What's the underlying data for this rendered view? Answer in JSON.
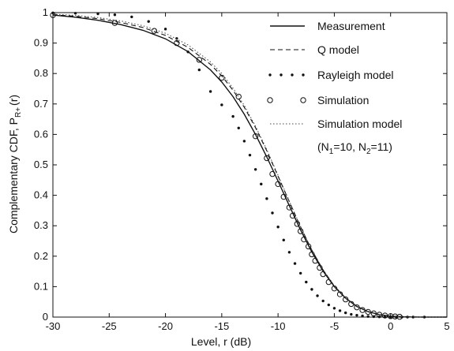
{
  "chart_data": {
    "type": "line",
    "xlabel": "Level, r (dB)",
    "ylabel": "Complementary CDF, P",
    "ylabel_sub": "R+",
    "ylabel_suffix": "(r)",
    "xlim": [
      -30,
      5
    ],
    "ylim": [
      0,
      1
    ],
    "xticks": [
      -30,
      -25,
      -20,
      -15,
      -10,
      -5,
      0,
      5
    ],
    "yticks": [
      0,
      0.1,
      0.2,
      0.3,
      0.4,
      0.5,
      0.6,
      0.7,
      0.8,
      0.9,
      1
    ],
    "grid": false,
    "legend_position": "top-right",
    "series": [
      {
        "name": "Measurement",
        "style": "solid",
        "x": [
          -30,
          -28,
          -26,
          -24,
          -22,
          -20,
          -18,
          -16,
          -15,
          -14,
          -13,
          -12,
          -11,
          -10,
          -9,
          -8,
          -7,
          -6,
          -5,
          -4,
          -3,
          -2,
          -1,
          0,
          1,
          2,
          3,
          5
        ],
        "y": [
          0.992,
          0.985,
          0.975,
          0.961,
          0.942,
          0.914,
          0.872,
          0.812,
          0.772,
          0.724,
          0.666,
          0.6,
          0.526,
          0.447,
          0.366,
          0.286,
          0.214,
          0.151,
          0.1,
          0.062,
          0.035,
          0.018,
          0.008,
          0.003,
          0.001,
          0.0003,
          0.0001,
          0
        ]
      },
      {
        "name": "Q model",
        "style": "dashed",
        "x": [
          -30,
          -28,
          -26,
          -24,
          -22,
          -20,
          -18,
          -16,
          -15,
          -14,
          -13,
          -12,
          -11,
          -10,
          -9,
          -8,
          -7,
          -6,
          -5,
          -4,
          -3,
          -2,
          -1,
          0,
          1,
          2,
          3,
          5
        ],
        "y": [
          0.993,
          0.988,
          0.98,
          0.968,
          0.951,
          0.925,
          0.886,
          0.83,
          0.792,
          0.745,
          0.689,
          0.622,
          0.546,
          0.463,
          0.379,
          0.296,
          0.22,
          0.155,
          0.102,
          0.063,
          0.035,
          0.018,
          0.008,
          0.003,
          0.001,
          0.0003,
          0.0001,
          0
        ]
      },
      {
        "name": "Rayleigh model",
        "style": "dots",
        "x": [
          -30,
          -28,
          -26,
          -24.5,
          -23,
          -21.5,
          -20,
          -19,
          -18,
          -17,
          -16,
          -15,
          -14,
          -13.5,
          -13,
          -12.5,
          -12,
          -11.5,
          -11,
          -10.5,
          -10,
          -9.5,
          -9,
          -8.5,
          -8,
          -7.5,
          -7,
          -6.5,
          -6,
          -5.5,
          -5,
          -4.5,
          -4,
          -3.5,
          -3,
          -2.5,
          -2,
          -1.5,
          -1,
          -0.5,
          0,
          0.5,
          1,
          1.5,
          2,
          3
        ],
        "y": [
          0.999,
          0.998,
          0.996,
          0.993,
          0.986,
          0.971,
          0.946,
          0.915,
          0.871,
          0.812,
          0.741,
          0.697,
          0.659,
          0.621,
          0.578,
          0.532,
          0.485,
          0.437,
          0.389,
          0.342,
          0.296,
          0.253,
          0.213,
          0.176,
          0.144,
          0.115,
          0.091,
          0.07,
          0.053,
          0.04,
          0.029,
          0.021,
          0.014,
          0.009,
          0.006,
          0.004,
          0.002,
          0.0014,
          0.0008,
          0.0004,
          0.0002,
          0.0001,
          0.0,
          0.0,
          0.0,
          0.0
        ]
      },
      {
        "name": "Simulation",
        "style": "circles",
        "x": [
          -30,
          -24.5,
          -21,
          -19,
          -17,
          -15,
          -13.5,
          -12,
          -11,
          -10.5,
          -10,
          -9.5,
          -9,
          -8.7,
          -8.3,
          -8,
          -7.7,
          -7.3,
          -7,
          -6.7,
          -6.3,
          -6,
          -5.5,
          -5,
          -4.5,
          -4,
          -3.5,
          -3,
          -2.5,
          -2,
          -1.5,
          -1,
          -0.5,
          0,
          0.4,
          0.8
        ],
        "y": [
          0.992,
          0.966,
          0.94,
          0.9,
          0.845,
          0.786,
          0.724,
          0.594,
          0.522,
          0.47,
          0.437,
          0.395,
          0.36,
          0.333,
          0.306,
          0.282,
          0.255,
          0.232,
          0.206,
          0.185,
          0.162,
          0.141,
          0.115,
          0.094,
          0.075,
          0.058,
          0.043,
          0.032,
          0.023,
          0.017,
          0.012,
          0.008,
          0.005,
          0.003,
          0.002,
          0.001
        ]
      },
      {
        "name": "Simulation model",
        "style": "dotted",
        "x": [
          -30,
          -28,
          -26,
          -24,
          -22,
          -20,
          -18,
          -16,
          -15,
          -14,
          -13,
          -12,
          -11,
          -10,
          -9,
          -8,
          -7,
          -6,
          -5,
          -4,
          -3,
          -2,
          -1,
          0,
          1,
          2,
          3,
          5
        ],
        "y": [
          0.995,
          0.991,
          0.984,
          0.973,
          0.957,
          0.932,
          0.894,
          0.838,
          0.8,
          0.752,
          0.695,
          0.627,
          0.55,
          0.466,
          0.381,
          0.297,
          0.221,
          0.155,
          0.101,
          0.062,
          0.035,
          0.018,
          0.008,
          0.003,
          0.001,
          0.0003,
          0.0001,
          0
        ]
      }
    ],
    "legend": [
      "Measurement",
      "Q model",
      "Rayleigh model",
      "Simulation",
      "Simulation model"
    ],
    "legend_extra": {
      "prefix": "(N",
      "sub1": "1",
      "middle": "=10, N",
      "sub2": "2",
      "suffix": "=11)"
    }
  }
}
